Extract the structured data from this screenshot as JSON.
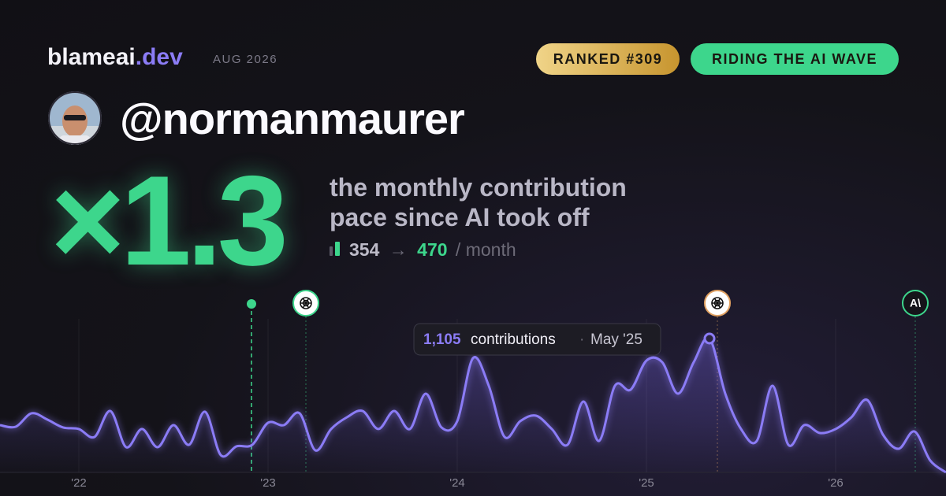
{
  "header": {
    "brand": "blameai",
    "brand_suffix": ".dev",
    "date": "AUG 2026",
    "badges": [
      "RANKED #309",
      "RIDING THE AI WAVE"
    ]
  },
  "profile": {
    "handle": "@normanmaurer"
  },
  "headline": {
    "multiplier": "×1.3",
    "description": [
      "the monthly contribution",
      "pace since AI took off"
    ],
    "before": "354",
    "arrow": "→",
    "after": "470",
    "unit": "/ month"
  },
  "anthropic_icon": "A\\",
  "tooltip": {
    "value": "1,105",
    "unit": "contributions",
    "separator": "·",
    "date": "May '25"
  },
  "chart_data": {
    "type": "line",
    "color": "#8b7cf6",
    "categories": [
      null,
      null,
      null,
      null,
      null,
      "'22",
      null,
      null,
      null,
      null,
      null,
      null,
      null,
      null,
      null,
      null,
      null,
      "'23",
      null,
      null,
      null,
      null,
      null,
      null,
      null,
      null,
      null,
      null,
      null,
      "'24",
      null,
      null,
      null,
      null,
      null,
      null,
      null,
      null,
      null,
      null,
      null,
      "'25",
      null,
      null,
      null,
      null,
      null,
      null,
      null,
      null,
      null,
      null,
      null,
      "'26",
      null,
      null,
      null,
      null,
      null,
      null,
      null
    ],
    "values": [
      390,
      377,
      488,
      436,
      371,
      358,
      293,
      507,
      208,
      358,
      208,
      390,
      228,
      501,
      143,
      215,
      228,
      410,
      390,
      488,
      182,
      358,
      455,
      507,
      358,
      507,
      358,
      650,
      371,
      423,
      943,
      715,
      293,
      423,
      468,
      358,
      228,
      585,
      260,
      715,
      683,
      923,
      910,
      650,
      910,
      1105,
      650,
      358,
      260,
      715,
      228,
      390,
      325,
      358,
      455,
      598,
      312,
      195,
      338,
      98,
      0
    ],
    "ylim": [
      0,
      1300
    ]
  }
}
